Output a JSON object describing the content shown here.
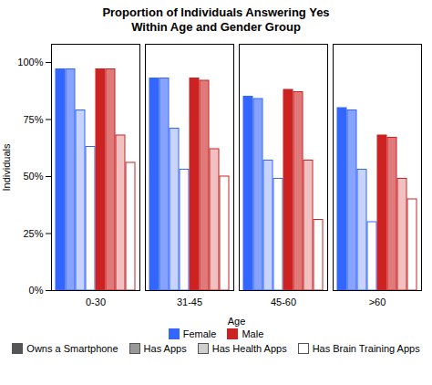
{
  "chart_data": {
    "type": "bar",
    "title": "Proportion of Individuals Answering Yes\nWithin Age and Gender Group",
    "xlabel": "Age",
    "ylabel": "Individuals",
    "categories": [
      "0-30",
      "31-45",
      "45-60",
      ">60"
    ],
    "ylim": [
      0,
      1.08
    ],
    "yticks": [
      {
        "value": 0,
        "label": "0%"
      },
      {
        "value": 0.25,
        "label": "25%"
      },
      {
        "value": 0.5,
        "label": "50%"
      },
      {
        "value": 0.75,
        "label": "75%"
      },
      {
        "value": 1.0,
        "label": "100%"
      }
    ],
    "series": [
      {
        "name": "Female",
        "color": "#3366FF",
        "series": [
          {
            "name": "Owns a Smartphone",
            "values": [
              0.97,
              0.93,
              0.85,
              0.8
            ]
          },
          {
            "name": "Has Apps",
            "values": [
              0.97,
              0.93,
              0.84,
              0.79
            ]
          },
          {
            "name": "Has Health Apps",
            "values": [
              0.79,
              0.71,
              0.57,
              0.53
            ]
          },
          {
            "name": "Has Brain Training Apps",
            "values": [
              0.63,
              0.53,
              0.49,
              0.3
            ]
          }
        ]
      },
      {
        "name": "Male",
        "color": "#CC2222",
        "series": [
          {
            "name": "Owns a Smartphone",
            "values": [
              0.97,
              0.93,
              0.88,
              0.68
            ]
          },
          {
            "name": "Has Apps",
            "values": [
              0.97,
              0.92,
              0.87,
              0.67
            ]
          },
          {
            "name": "Has Health Apps",
            "values": [
              0.68,
              0.62,
              0.57,
              0.49
            ]
          },
          {
            "name": "Has Brain Training Apps",
            "values": [
              0.56,
              0.5,
              0.31,
              0.4
            ]
          }
        ]
      }
    ]
  }
}
